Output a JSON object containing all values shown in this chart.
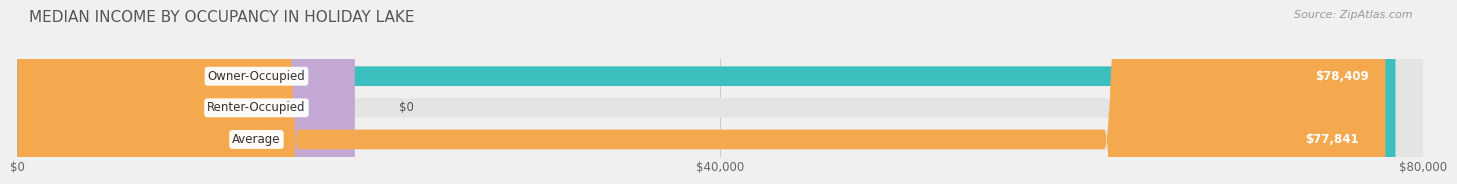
{
  "title": "MEDIAN INCOME BY OCCUPANCY IN HOLIDAY LAKE",
  "source": "Source: ZipAtlas.com",
  "categories": [
    "Owner-Occupied",
    "Renter-Occupied",
    "Average"
  ],
  "values": [
    78409,
    0,
    77841
  ],
  "colors": [
    "#3bbfbf",
    "#c4a8d4",
    "#f5a94e"
  ],
  "bar_labels": [
    "$78,409",
    "$0",
    "$77,841"
  ],
  "xlim": [
    0,
    80000
  ],
  "xticks": [
    0,
    40000,
    80000
  ],
  "xtick_labels": [
    "$0",
    "$40,000",
    "$80,000"
  ],
  "background_color": "#f0f0f0",
  "bar_bg_color": "#e4e4e4",
  "title_fontsize": 11,
  "source_fontsize": 8,
  "label_fontsize": 8.5
}
